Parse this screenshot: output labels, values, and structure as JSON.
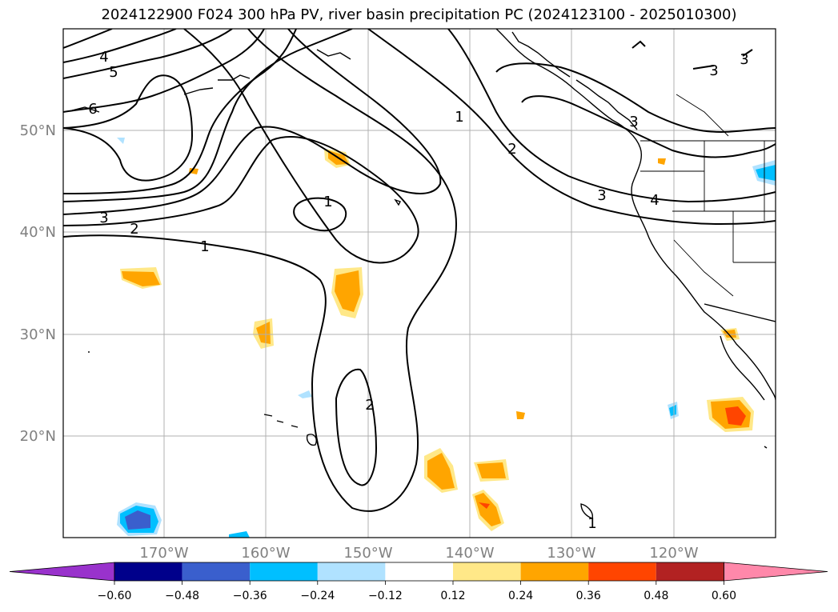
{
  "title": "2024122900 F024 300 hPa PV, river basin precipitation PC (2024123100 - 2025010300)",
  "map": {
    "lat_labels": [
      "50°N",
      "40°N",
      "30°N",
      "20°N"
    ],
    "lon_labels": [
      "170°W",
      "160°W",
      "150°W",
      "140°W",
      "130°W",
      "120°W"
    ],
    "contour_labels": [
      "1",
      "2",
      "3",
      "4",
      "5",
      "6",
      "1",
      "2",
      "3",
      "4",
      "3",
      "3",
      "3",
      "1",
      "2",
      "1"
    ]
  },
  "colorbar": {
    "ticks": [
      "−0.60",
      "−0.48",
      "−0.36",
      "−0.24",
      "−0.12",
      "0.12",
      "0.24",
      "0.36",
      "0.48",
      "0.60"
    ],
    "colors": [
      "#9932cc",
      "#00008b",
      "#3a5fcd",
      "#00bfff",
      "#b0e2ff",
      "#ffffff",
      "#ffe888",
      "#ffa500",
      "#ff4500",
      "#b22222",
      "#ff88aa"
    ]
  },
  "colors": {
    "grid": "#b0b0b0",
    "contour": "#000000",
    "coast": "#000000"
  }
}
